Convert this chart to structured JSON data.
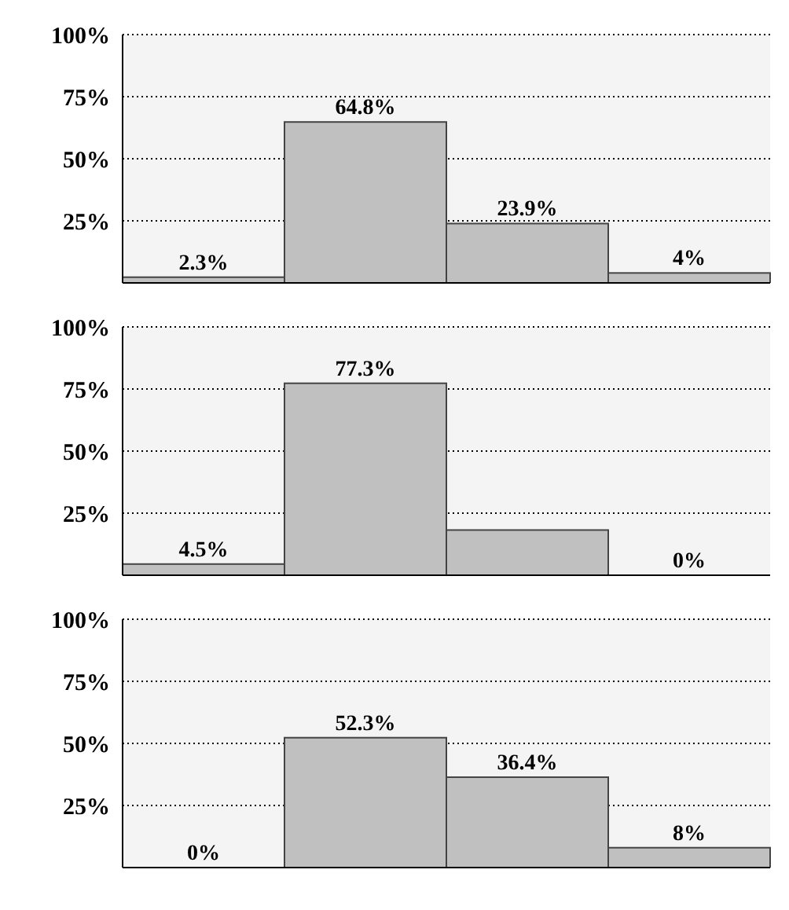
{
  "chart_data": [
    {
      "type": "bar",
      "categories": [
        null,
        null,
        null,
        null
      ],
      "values": [
        2.3,
        64.8,
        23.9,
        4
      ],
      "color": "#c0c0c0",
      "ylim": [
        0,
        100
      ],
      "yticks": [
        {
          "value": 25,
          "label": "25%"
        },
        {
          "value": 50,
          "label": "50%"
        },
        {
          "value": 75,
          "label": "75%"
        },
        {
          "value": 100,
          "label": "100%"
        }
      ],
      "grid": "y",
      "value_labels": [
        "2.3%",
        "64.8%",
        "23.9%",
        "4%"
      ],
      "tick_labels": "y"
    },
    {
      "type": "bar",
      "categories": [
        null,
        null,
        null,
        null
      ],
      "values": [
        4.5,
        77.3,
        18.2,
        0
      ],
      "color": "#c0c0c0",
      "ylim": [
        0,
        100
      ],
      "yticks": [
        {
          "value": 25,
          "label": "25%"
        },
        {
          "value": 50,
          "label": "50%"
        },
        {
          "value": 75,
          "label": "75%"
        },
        {
          "value": 100,
          "label": "100%"
        }
      ],
      "grid": "y",
      "value_labels": [
        "4.5%",
        "77.3%",
        null,
        "0%"
      ],
      "tick_labels": "y"
    },
    {
      "type": "bar",
      "categories": [
        null,
        null,
        null,
        null
      ],
      "values": [
        0,
        52.3,
        36.4,
        8
      ],
      "color": "#c0c0c0",
      "ylim": [
        0,
        100
      ],
      "yticks": [
        {
          "value": 25,
          "label": "25%"
        },
        {
          "value": 50,
          "label": "50%"
        },
        {
          "value": 75,
          "label": "75%"
        },
        {
          "value": 100,
          "label": "100%"
        }
      ],
      "grid": "y",
      "value_labels": [
        "0%",
        "52.3%",
        "36.4%",
        "8%"
      ],
      "tick_labels": "y"
    }
  ]
}
